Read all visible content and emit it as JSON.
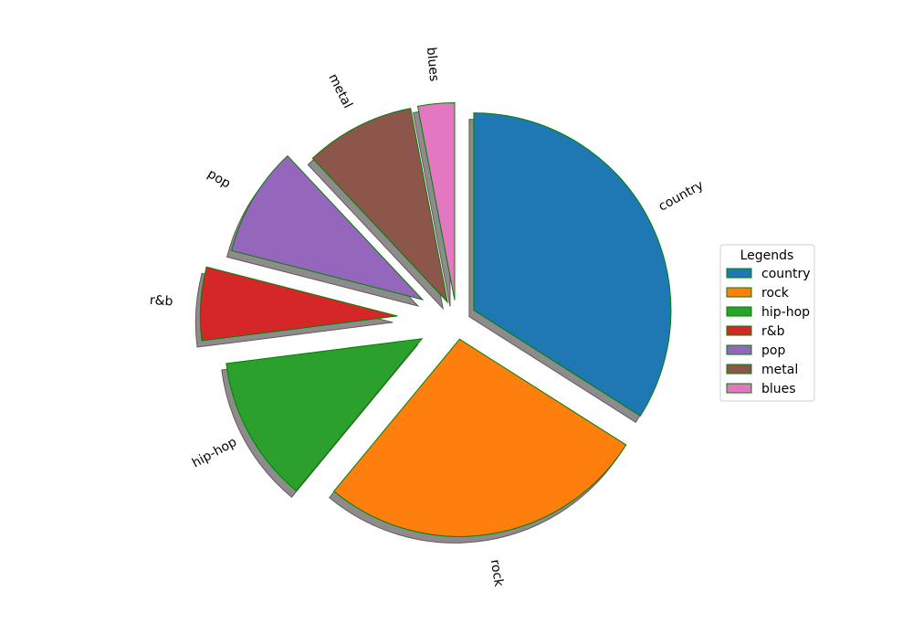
{
  "chart_data": {
    "type": "pie",
    "categories": [
      "country",
      "rock",
      "hip-hop",
      "r&b",
      "pop",
      "metal",
      "blues"
    ],
    "values": [
      34,
      27,
      12,
      6,
      9,
      9,
      3
    ],
    "explode": [
      0.1,
      0.1,
      0.2,
      0.3,
      0.2,
      0.1,
      0.1
    ],
    "start_angle_deg": 90,
    "direction": "clockwise",
    "colors": [
      "#1f77b4",
      "#ff7f0e",
      "#2ca02c",
      "#d62728",
      "#9467bd",
      "#8c564b",
      "#e377c2"
    ],
    "edge_color": "#008000",
    "shadow": true,
    "shadow_color": "#7f7f7f",
    "legend": {
      "title": "Legends",
      "placement": "center-right"
    }
  }
}
